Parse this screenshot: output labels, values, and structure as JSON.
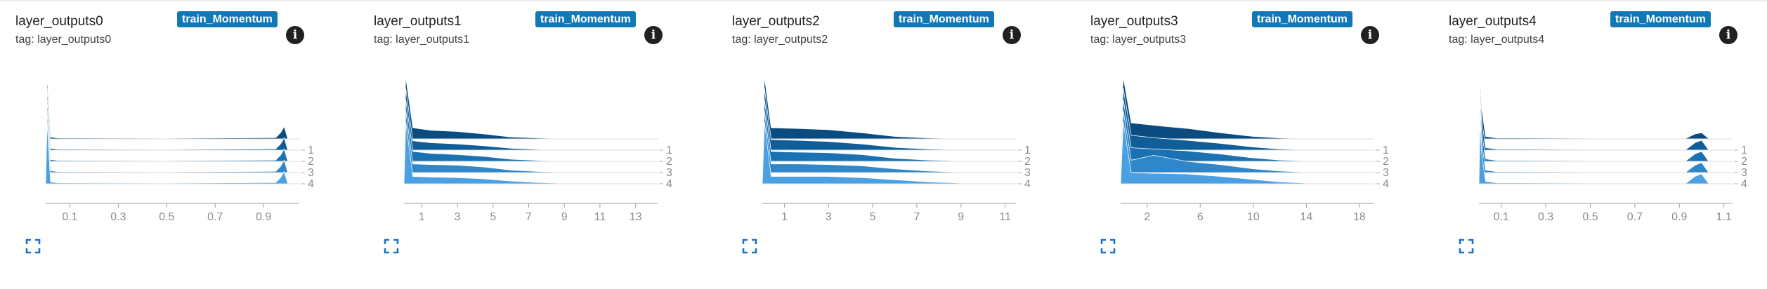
{
  "colors": {
    "series": [
      "#0a4c80",
      "#105e99",
      "#1a72b3",
      "#2f86c9",
      "#4aa0e2"
    ],
    "run_badge": "#1178b8",
    "info_icon": "#212121",
    "expand_icon": "#1a73c4",
    "axis_text": "#8c8c8c"
  },
  "cards": [
    {
      "title": "layer_outputs0",
      "tag": "tag: layer_outputs0",
      "run": "train_Momentum",
      "chart_data": {
        "type": "area",
        "subtype": "histogram-ridgeline",
        "xlim": [
          0.0,
          1.03
        ],
        "xticks": [
          0.1,
          0.3,
          0.5,
          0.7,
          0.9
        ],
        "xtick_labels": [
          "0.1",
          "0.3",
          "0.5",
          "0.7",
          "0.9"
        ],
        "ylabels": [
          "1",
          "2",
          "3",
          "4"
        ],
        "series": [
          {
            "x": [
              0.0,
              0.006,
              0.012,
              0.02,
              0.05,
              0.5,
              0.95,
              0.97,
              0.985,
              1.0
            ],
            "y": [
              0.0,
              1.0,
              0.6,
              0.03,
              0.015,
              0.01,
              0.02,
              0.1,
              0.2,
              0.0
            ]
          },
          {
            "x": [
              0.0,
              0.006,
              0.012,
              0.02,
              0.05,
              0.5,
              0.95,
              0.97,
              0.985,
              1.0
            ],
            "y": [
              0.0,
              1.0,
              0.6,
              0.03,
              0.015,
              0.01,
              0.02,
              0.1,
              0.2,
              0.0
            ]
          },
          {
            "x": [
              0.0,
              0.006,
              0.012,
              0.02,
              0.05,
              0.5,
              0.95,
              0.97,
              0.985,
              1.0
            ],
            "y": [
              0.0,
              1.0,
              0.6,
              0.03,
              0.015,
              0.01,
              0.02,
              0.1,
              0.2,
              0.0
            ]
          },
          {
            "x": [
              0.0,
              0.006,
              0.012,
              0.02,
              0.05,
              0.5,
              0.95,
              0.97,
              0.985,
              1.0
            ],
            "y": [
              0.0,
              1.0,
              0.6,
              0.03,
              0.015,
              0.01,
              0.02,
              0.1,
              0.2,
              0.0
            ]
          },
          {
            "x": [
              0.0,
              0.006,
              0.012,
              0.02,
              0.05,
              0.5,
              0.95,
              0.97,
              0.985,
              1.0
            ],
            "y": [
              0.0,
              1.0,
              0.6,
              0.03,
              0.015,
              0.01,
              0.02,
              0.1,
              0.2,
              0.0
            ]
          }
        ]
      }
    },
    {
      "title": "layer_outputs1",
      "tag": "tag: layer_outputs1",
      "run": "train_Momentum",
      "chart_data": {
        "type": "area",
        "subtype": "histogram-ridgeline",
        "xlim": [
          0.0,
          14.0
        ],
        "xticks": [
          1,
          3,
          5,
          7,
          9,
          11,
          13
        ],
        "xtick_labels": [
          "1",
          "3",
          "5",
          "7",
          "9",
          "11",
          "13"
        ],
        "ylabels": [
          "1",
          "2",
          "3",
          "4"
        ],
        "series": [
          {
            "x": [
              0,
              0.1,
              0.5,
              1.5,
              3,
              4.5,
              6,
              7.5,
              9,
              14
            ],
            "y": [
              0,
              1.0,
              0.18,
              0.14,
              0.12,
              0.08,
              0.03,
              0.015,
              0.005,
              0
            ]
          },
          {
            "x": [
              0,
              0.1,
              0.5,
              1.5,
              3,
              4.5,
              6,
              7.5,
              9,
              14
            ],
            "y": [
              0,
              1.0,
              0.15,
              0.12,
              0.1,
              0.07,
              0.03,
              0.012,
              0.004,
              0
            ]
          },
          {
            "x": [
              0,
              0.1,
              0.5,
              1.5,
              3,
              4.5,
              6,
              7.5,
              9,
              14
            ],
            "y": [
              0,
              1.0,
              0.16,
              0.13,
              0.11,
              0.08,
              0.035,
              0.015,
              0.005,
              0
            ]
          },
          {
            "x": [
              0,
              0.1,
              0.5,
              1.5,
              3,
              4.5,
              6,
              7.5,
              9,
              14
            ],
            "y": [
              0,
              1.0,
              0.14,
              0.13,
              0.12,
              0.09,
              0.04,
              0.018,
              0.006,
              0
            ]
          },
          {
            "x": [
              0,
              0.1,
              0.5,
              1.5,
              3,
              4.5,
              6,
              7.5,
              9,
              14
            ],
            "y": [
              0,
              1.0,
              0.12,
              0.11,
              0.1,
              0.08,
              0.045,
              0.02,
              0.008,
              0
            ]
          }
        ]
      }
    },
    {
      "title": "layer_outputs2",
      "tag": "tag: layer_outputs2",
      "run": "train_Momentum",
      "chart_data": {
        "type": "area",
        "subtype": "histogram-ridgeline",
        "xlim": [
          0.0,
          11.3
        ],
        "xticks": [
          1,
          3,
          5,
          7,
          9,
          11
        ],
        "xtick_labels": [
          "1",
          "3",
          "5",
          "7",
          "9",
          "11"
        ],
        "ylabels": [
          "1",
          "2",
          "3",
          "4"
        ],
        "series": [
          {
            "x": [
              0,
              0.1,
              0.4,
              1.5,
              3,
              4.5,
              6,
              7.5,
              9,
              11.3
            ],
            "y": [
              0,
              1.0,
              0.18,
              0.17,
              0.15,
              0.1,
              0.04,
              0.015,
              0.005,
              0
            ]
          },
          {
            "x": [
              0,
              0.1,
              0.4,
              1.5,
              3,
              4.5,
              6,
              7.5,
              9,
              11.3
            ],
            "y": [
              0,
              1.0,
              0.17,
              0.16,
              0.14,
              0.1,
              0.045,
              0.018,
              0.006,
              0
            ]
          },
          {
            "x": [
              0,
              0.1,
              0.4,
              1.5,
              3,
              4.5,
              6,
              7.5,
              9,
              11.3
            ],
            "y": [
              0,
              1.0,
              0.16,
              0.15,
              0.14,
              0.11,
              0.05,
              0.02,
              0.007,
              0
            ]
          },
          {
            "x": [
              0,
              0.1,
              0.4,
              1.5,
              3,
              4.5,
              6,
              7.5,
              9,
              11.3
            ],
            "y": [
              0,
              1.0,
              0.14,
              0.14,
              0.13,
              0.11,
              0.06,
              0.025,
              0.008,
              0
            ]
          },
          {
            "x": [
              0,
              0.1,
              0.4,
              1.5,
              3,
              4.5,
              6,
              7.5,
              9,
              11.3
            ],
            "y": [
              0,
              1.0,
              0.12,
              0.12,
              0.12,
              0.1,
              0.065,
              0.03,
              0.01,
              0
            ]
          }
        ]
      }
    },
    {
      "title": "layer_outputs3",
      "tag": "tag: layer_outputs3",
      "run": "train_Momentum",
      "chart_data": {
        "type": "area",
        "subtype": "histogram-ridgeline",
        "xlim": [
          0.0,
          18.8
        ],
        "xticks": [
          2,
          6,
          10,
          14,
          18
        ],
        "xtick_labels": [
          "2",
          "6",
          "10",
          "14",
          "18"
        ],
        "ylabels": [
          "1",
          "2",
          "3",
          "4"
        ],
        "series": [
          {
            "x": [
              0,
              0.2,
              0.8,
              2.5,
              5,
              7.5,
              10,
              12,
              14,
              18.8
            ],
            "y": [
              0,
              1.0,
              0.26,
              0.22,
              0.17,
              0.1,
              0.04,
              0.015,
              0.005,
              0
            ]
          },
          {
            "x": [
              0,
              0.2,
              0.8,
              2.5,
              5,
              7.5,
              10,
              12,
              14,
              18.8
            ],
            "y": [
              0,
              1.0,
              0.24,
              0.2,
              0.16,
              0.11,
              0.05,
              0.018,
              0.006,
              0
            ]
          },
          {
            "x": [
              0,
              0.2,
              0.8,
              2.5,
              5,
              7.5,
              10,
              12,
              14,
              18.8
            ],
            "y": [
              0,
              1.0,
              0.22,
              0.2,
              0.17,
              0.12,
              0.055,
              0.02,
              0.007,
              0
            ]
          },
          {
            "x": [
              0,
              0.2,
              0.8,
              2.5,
              5,
              7.5,
              10,
              12,
              14,
              18.8
            ],
            "y": [
              0,
              1.0,
              0.2,
              0.28,
              0.18,
              0.13,
              0.06,
              0.025,
              0.008,
              0
            ]
          },
          {
            "x": [
              0,
              0.2,
              0.8,
              2.5,
              5,
              7.5,
              10,
              12,
              14,
              18.8
            ],
            "y": [
              0,
              1.0,
              0.18,
              0.17,
              0.16,
              0.12,
              0.07,
              0.03,
              0.01,
              0
            ]
          }
        ]
      }
    },
    {
      "title": "layer_outputs4",
      "tag": "tag: layer_outputs4",
      "run": "train_Momentum",
      "chart_data": {
        "type": "area",
        "subtype": "histogram-ridgeline",
        "xlim": [
          0.0,
          1.12
        ],
        "xticks": [
          0.1,
          0.3,
          0.5,
          0.7,
          0.9,
          1.1
        ],
        "xtick_labels": [
          "0.1",
          "0.3",
          "0.5",
          "0.7",
          "0.9",
          "1.1"
        ],
        "ylabels": [
          "1",
          "2",
          "3",
          "4"
        ],
        "series": [
          {
            "x": [
              0.0,
              0.005,
              0.012,
              0.03,
              0.08,
              0.5,
              0.93,
              0.97,
              1.0,
              1.03,
              1.12
            ],
            "y": [
              0.0,
              1.0,
              0.5,
              0.04,
              0.015,
              0.01,
              0.01,
              0.08,
              0.1,
              0.01,
              0.0
            ]
          },
          {
            "x": [
              0.0,
              0.005,
              0.012,
              0.03,
              0.08,
              0.5,
              0.93,
              0.97,
              1.0,
              1.03,
              1.12
            ],
            "y": [
              0.0,
              1.0,
              0.5,
              0.04,
              0.015,
              0.01,
              0.01,
              0.12,
              0.16,
              0.01,
              0.0
            ]
          },
          {
            "x": [
              0.0,
              0.005,
              0.012,
              0.03,
              0.08,
              0.5,
              0.93,
              0.97,
              1.0,
              1.03,
              1.12
            ],
            "y": [
              0.0,
              1.0,
              0.5,
              0.04,
              0.015,
              0.01,
              0.01,
              0.12,
              0.16,
              0.01,
              0.0
            ]
          },
          {
            "x": [
              0.0,
              0.005,
              0.012,
              0.03,
              0.08,
              0.5,
              0.93,
              0.97,
              1.0,
              1.03,
              1.12
            ],
            "y": [
              0.0,
              1.0,
              0.5,
              0.04,
              0.015,
              0.01,
              0.01,
              0.12,
              0.16,
              0.01,
              0.0
            ]
          },
          {
            "x": [
              0.0,
              0.005,
              0.012,
              0.03,
              0.08,
              0.5,
              0.93,
              0.97,
              1.0,
              1.03,
              1.12
            ],
            "y": [
              0.0,
              1.0,
              0.5,
              0.04,
              0.015,
              0.01,
              0.01,
              0.12,
              0.16,
              0.01,
              0.0
            ]
          }
        ]
      }
    }
  ]
}
